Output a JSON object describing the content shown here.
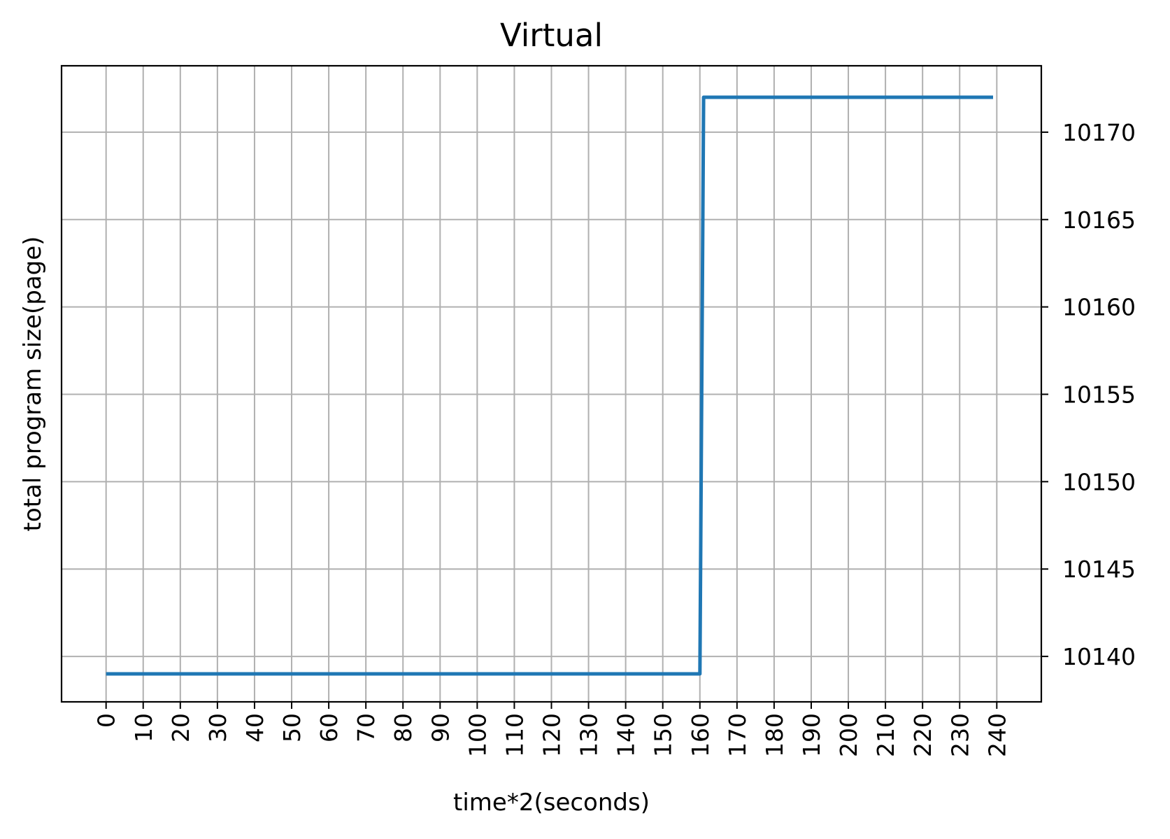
{
  "chart_data": {
    "type": "line",
    "title": "Virtual",
    "xlabel": "time*2(seconds)",
    "ylabel": "total program size(page)",
    "xlim": [
      -12,
      252
    ],
    "ylim": [
      10137.4,
      10173.8
    ],
    "x_ticks": [
      "0",
      "10",
      "20",
      "30",
      "40",
      "50",
      "60",
      "70",
      "80",
      "90",
      "100",
      "110",
      "120",
      "130",
      "140",
      "150",
      "160",
      "170",
      "180",
      "190",
      "200",
      "210",
      "220",
      "230",
      "240"
    ],
    "y_ticks": [
      "10140",
      "10145",
      "10150",
      "10155",
      "10160",
      "10165",
      "10170"
    ],
    "y_axis_side": "right",
    "grid": true,
    "line_color": "#1f77b4",
    "series": [
      {
        "x": [
          0,
          160,
          161,
          239
        ],
        "values": [
          10139,
          10139,
          10172,
          10172
        ]
      }
    ]
  }
}
